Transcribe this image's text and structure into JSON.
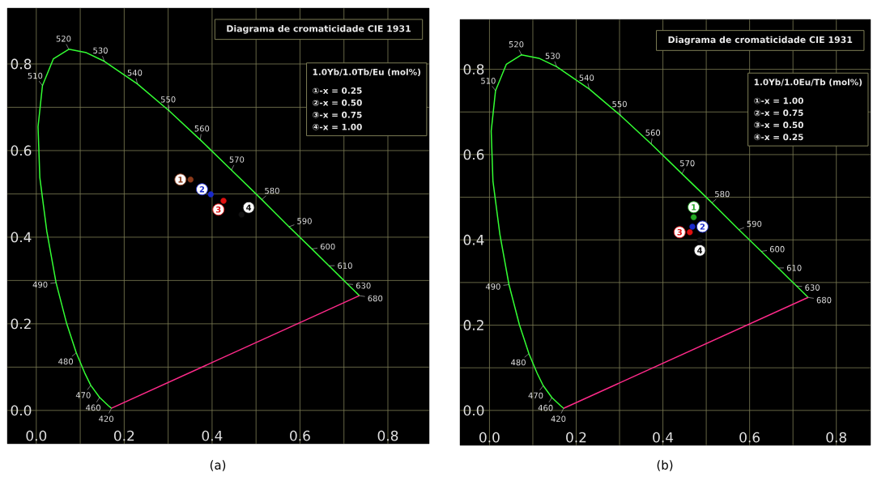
{
  "chart_data": [
    {
      "type": "scatter",
      "title": "Diagrama de cromaticidade CIE 1931",
      "subtitle": "(a)",
      "legend_title": "1.0Yb/1.0Tb/Eu (mol%)",
      "xlim": [
        -0.066,
        0.894
      ],
      "ylim": [
        -0.077,
        0.929
      ],
      "xticks": [
        {
          "value": 0,
          "label": "0.0"
        },
        {
          "value": 0.2,
          "label": "0.2"
        },
        {
          "value": 0.4,
          "label": "0.4"
        },
        {
          "value": 0.6,
          "label": "0.6"
        },
        {
          "value": 0.8,
          "label": "0.8"
        }
      ],
      "yticks": [
        {
          "value": 0,
          "label": "0.0"
        },
        {
          "value": 0.2,
          "label": "0.2"
        },
        {
          "value": 0.4,
          "label": "0.4"
        },
        {
          "value": 0.6,
          "label": "0.6"
        },
        {
          "value": 0.8,
          "label": "0.8"
        }
      ],
      "grid": true,
      "annotations": [
        "①-x = 0.25",
        "②-x = 0.50",
        "③-x = 0.75",
        "④-x = 1.00",
        {
          "text": "420",
          "x": 0.171,
          "y": 0.005
        },
        {
          "text": "460",
          "x": 0.144,
          "y": 0.03
        },
        {
          "text": "470",
          "x": 0.124,
          "y": 0.058
        },
        {
          "text": "480",
          "x": 0.091,
          "y": 0.133
        },
        {
          "text": "490",
          "x": 0.045,
          "y": 0.295
        },
        {
          "text": "510",
          "x": 0.014,
          "y": 0.75
        },
        {
          "text": "520",
          "x": 0.074,
          "y": 0.834
        },
        {
          "text": "530",
          "x": 0.155,
          "y": 0.806
        },
        {
          "text": "540",
          "x": 0.23,
          "y": 0.754
        },
        {
          "text": "550",
          "x": 0.302,
          "y": 0.692
        },
        {
          "text": "560",
          "x": 0.373,
          "y": 0.625
        },
        {
          "text": "570",
          "x": 0.444,
          "y": 0.555
        },
        {
          "text": "580",
          "x": 0.513,
          "y": 0.487
        },
        {
          "text": "590",
          "x": 0.575,
          "y": 0.424
        },
        {
          "text": "600",
          "x": 0.627,
          "y": 0.373
        },
        {
          "text": "610",
          "x": 0.666,
          "y": 0.334
        },
        {
          "text": "630",
          "x": 0.708,
          "y": 0.292
        },
        {
          "text": "680",
          "x": 0.735,
          "y": 0.265
        }
      ],
      "series": [
        {
          "type": "line",
          "color": "#33ff33",
          "x": [
            0.171,
            0.164,
            0.144,
            0.124,
            0.11,
            0.091,
            0.069,
            0.045,
            0.024,
            0.008,
            0.004,
            0.014,
            0.039,
            0.074,
            0.114,
            0.155,
            0.23,
            0.302,
            0.373,
            0.444,
            0.513,
            0.575,
            0.627,
            0.666,
            0.692,
            0.708,
            0.726,
            0.735
          ],
          "values": [
            0.005,
            0.011,
            0.03,
            0.058,
            0.087,
            0.133,
            0.201,
            0.295,
            0.413,
            0.538,
            0.655,
            0.75,
            0.812,
            0.834,
            0.826,
            0.806,
            0.754,
            0.692,
            0.625,
            0.555,
            0.487,
            0.424,
            0.373,
            0.334,
            0.308,
            0.292,
            0.274,
            0.265
          ]
        },
        {
          "type": "line",
          "color": "#ff2a8a",
          "x": [
            0.735,
            0.171
          ],
          "values": [
            0.265,
            0.005
          ]
        },
        {
          "name": "1",
          "color": "#8b3a1a",
          "x": [
            0.351
          ],
          "values": [
            0.533
          ]
        },
        {
          "name": "2",
          "color": "#1a2acc",
          "x": [
            0.397
          ],
          "values": [
            0.499
          ]
        },
        {
          "name": "3",
          "color": "#e01010",
          "x": [
            0.426
          ],
          "values": [
            0.484
          ]
        },
        {
          "name": "4",
          "color": "#111111",
          "x": [
            0.467
          ],
          "values": [
            0.452
          ]
        }
      ]
    },
    {
      "type": "scatter",
      "title": "Diagrama de cromaticidade CIE 1931",
      "subtitle": "(b)",
      "legend_title": "1.0Yb/1.0Eu/Tb (mol%)",
      "xlim": [
        -0.068,
        0.879
      ],
      "ylim": [
        -0.082,
        0.917
      ],
      "xticks": [
        {
          "value": 0,
          "label": "0.0"
        },
        {
          "value": 0.2,
          "label": "0.2"
        },
        {
          "value": 0.4,
          "label": "0.4"
        },
        {
          "value": 0.6,
          "label": "0.6"
        },
        {
          "value": 0.8,
          "label": "0.8"
        }
      ],
      "yticks": [
        {
          "value": 0,
          "label": "0.0"
        },
        {
          "value": 0.2,
          "label": "0.2"
        },
        {
          "value": 0.4,
          "label": "0.4"
        },
        {
          "value": 0.6,
          "label": "0.6"
        },
        {
          "value": 0.8,
          "label": "0.8"
        }
      ],
      "grid": true,
      "annotations": [
        "①-x = 1.00",
        "②-x = 0.75",
        "③-x = 0.50",
        "④-x = 0.25",
        {
          "text": "420",
          "x": 0.171,
          "y": 0.005
        },
        {
          "text": "460",
          "x": 0.144,
          "y": 0.03
        },
        {
          "text": "470",
          "x": 0.124,
          "y": 0.058
        },
        {
          "text": "480",
          "x": 0.091,
          "y": 0.133
        },
        {
          "text": "490",
          "x": 0.045,
          "y": 0.295
        },
        {
          "text": "510",
          "x": 0.014,
          "y": 0.75
        },
        {
          "text": "520",
          "x": 0.074,
          "y": 0.834
        },
        {
          "text": "530",
          "x": 0.155,
          "y": 0.806
        },
        {
          "text": "540",
          "x": 0.23,
          "y": 0.754
        },
        {
          "text": "550",
          "x": 0.302,
          "y": 0.692
        },
        {
          "text": "560",
          "x": 0.373,
          "y": 0.625
        },
        {
          "text": "570",
          "x": 0.444,
          "y": 0.555
        },
        {
          "text": "580",
          "x": 0.513,
          "y": 0.487
        },
        {
          "text": "590",
          "x": 0.575,
          "y": 0.424
        },
        {
          "text": "600",
          "x": 0.627,
          "y": 0.373
        },
        {
          "text": "610",
          "x": 0.666,
          "y": 0.334
        },
        {
          "text": "630",
          "x": 0.708,
          "y": 0.292
        },
        {
          "text": "680",
          "x": 0.735,
          "y": 0.265
        }
      ],
      "series": [
        {
          "type": "line",
          "color": "#33ff33",
          "x": [
            0.171,
            0.164,
            0.144,
            0.124,
            0.11,
            0.091,
            0.069,
            0.045,
            0.024,
            0.008,
            0.004,
            0.014,
            0.039,
            0.074,
            0.114,
            0.155,
            0.23,
            0.302,
            0.373,
            0.444,
            0.513,
            0.575,
            0.627,
            0.666,
            0.692,
            0.708,
            0.726,
            0.735
          ],
          "values": [
            0.005,
            0.011,
            0.03,
            0.058,
            0.087,
            0.133,
            0.201,
            0.295,
            0.413,
            0.538,
            0.655,
            0.75,
            0.812,
            0.834,
            0.826,
            0.806,
            0.754,
            0.692,
            0.625,
            0.555,
            0.487,
            0.424,
            0.373,
            0.334,
            0.308,
            0.292,
            0.274,
            0.265
          ]
        },
        {
          "type": "line",
          "color": "#ff2a8a",
          "x": [
            0.735,
            0.171
          ],
          "values": [
            0.265,
            0.005
          ]
        },
        {
          "name": "1",
          "color": "#22aa22",
          "x": [
            0.471
          ],
          "values": [
            0.453
          ]
        },
        {
          "name": "2",
          "color": "#1a2acc",
          "x": [
            0.468
          ],
          "values": [
            0.431
          ]
        },
        {
          "name": "3",
          "color": "#e01010",
          "x": [
            0.462
          ],
          "values": [
            0.418
          ]
        },
        {
          "name": "4",
          "color": "#111111",
          "x": [
            0.485
          ],
          "values": [
            0.399
          ]
        }
      ]
    }
  ]
}
